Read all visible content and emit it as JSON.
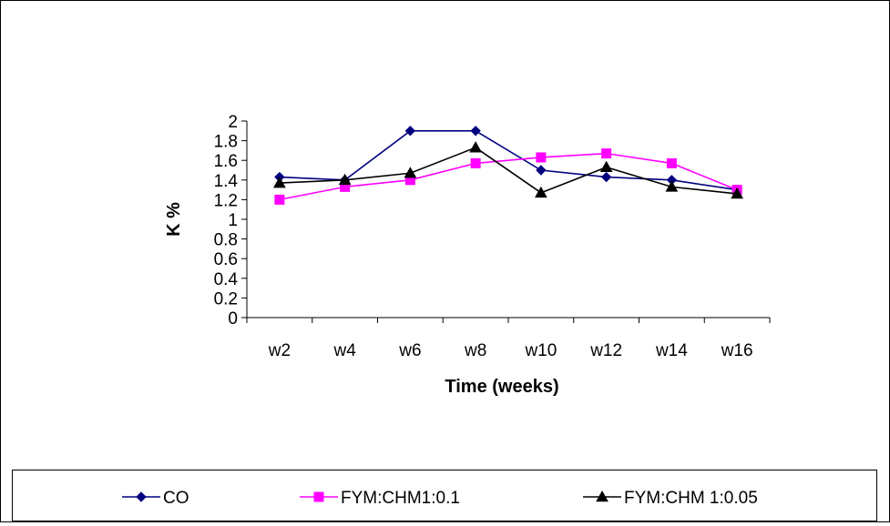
{
  "chart_data": {
    "type": "line",
    "categories": [
      "w2",
      "w4",
      "w6",
      "w8",
      "w10",
      "w12",
      "w14",
      "w16"
    ],
    "series": [
      {
        "name": "CO",
        "color": "#000080",
        "marker": "diamond",
        "values": [
          1.43,
          1.4,
          1.9,
          1.9,
          1.5,
          1.43,
          1.4,
          1.3
        ]
      },
      {
        "name": "FYM:CHM1:0.1",
        "color": "#FF00FF",
        "marker": "square",
        "values": [
          1.2,
          1.33,
          1.4,
          1.57,
          1.63,
          1.67,
          1.57,
          1.3
        ]
      },
      {
        "name": "FYM:CHM 1:0.05",
        "color": "#000000",
        "marker": "triangle",
        "values": [
          1.37,
          1.4,
          1.47,
          1.73,
          1.27,
          1.53,
          1.33,
          1.26
        ]
      }
    ],
    "xlabel": "Time (weeks)",
    "ylabel": "K %",
    "ylim": [
      0,
      2
    ],
    "yticks": [
      "0",
      "0.2",
      "0.4",
      "0.6",
      "0.8",
      "1",
      "1.2",
      "1.4",
      "1.6",
      "1.8",
      "2"
    ],
    "grid": false,
    "legend_position": "bottom"
  }
}
